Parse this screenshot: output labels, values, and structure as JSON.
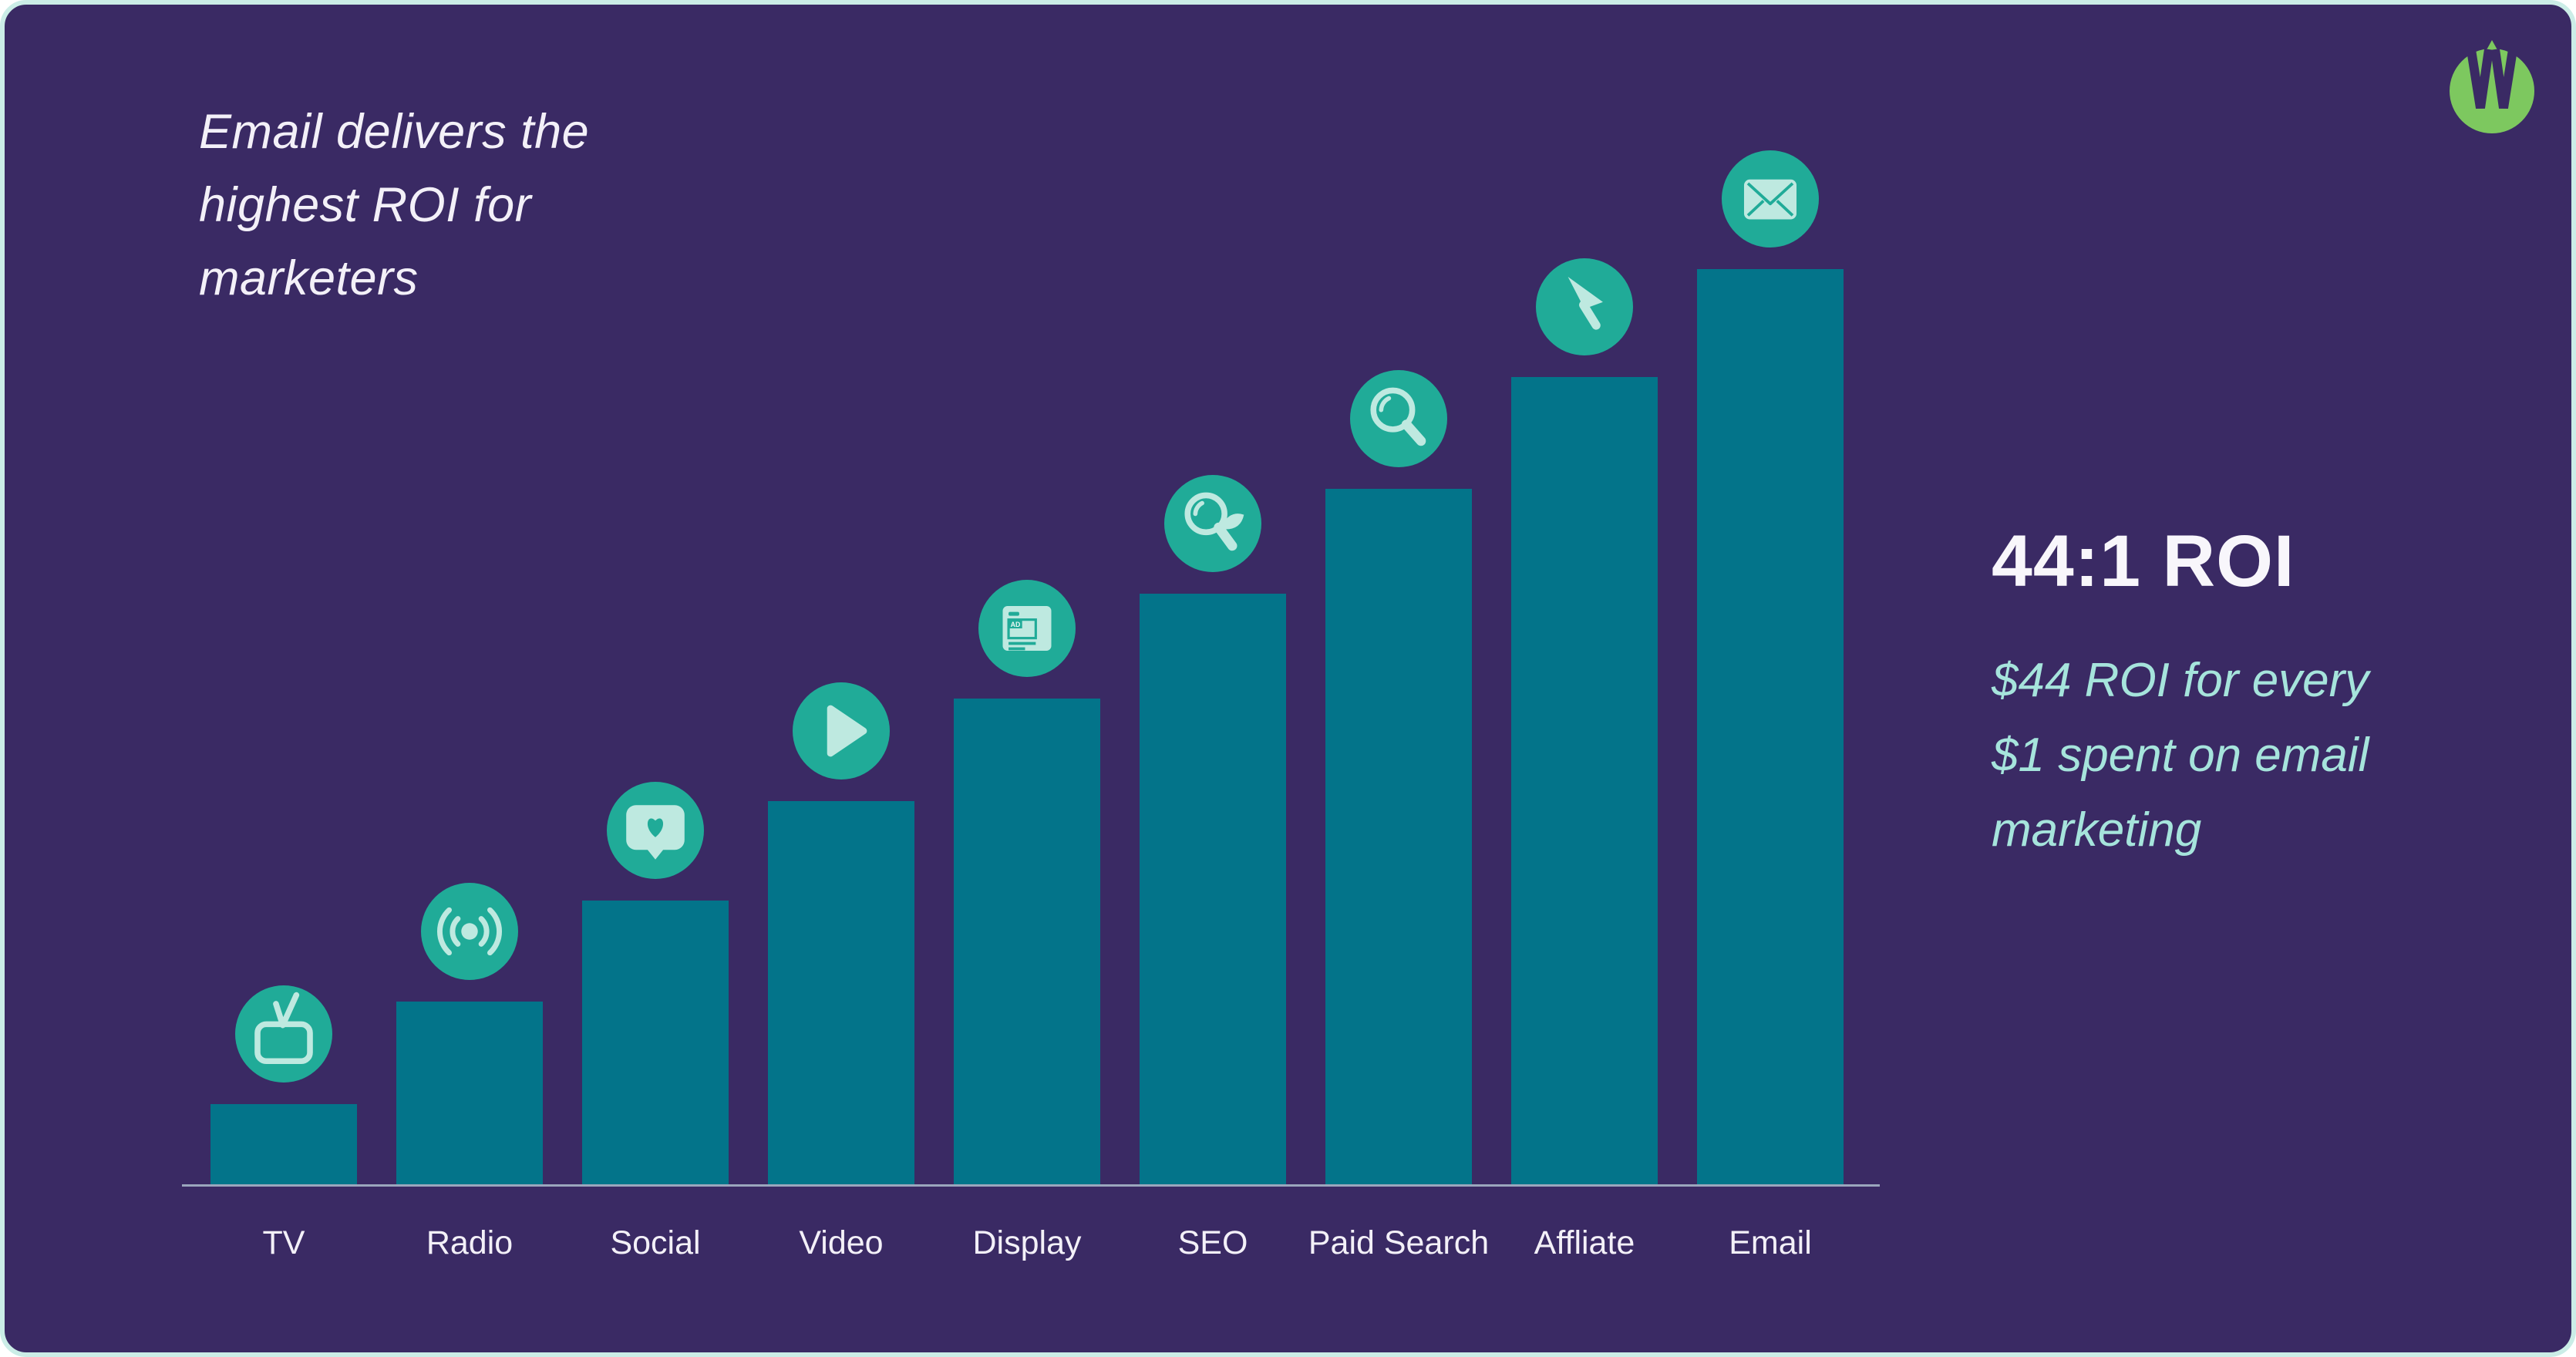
{
  "card": {
    "background": "#3A2A64",
    "border_color": "#CBEDE7"
  },
  "headline": {
    "text": "Email delivers the\nhighest ROI for\nmarketers",
    "color": "#F3F0F8"
  },
  "logo": {
    "name": "w-brand-logo",
    "circle_color": "#7DC85F",
    "cut_color": "#3A2A64"
  },
  "stat": {
    "value": "44:1 ROI",
    "description": "$44 ROI for every\n$1 spent on email\nmarketing",
    "value_color": "#F8F6FB",
    "description_color": "#A6E4DC"
  },
  "chart_data": {
    "type": "bar",
    "title": "Email delivers the highest ROI for marketers",
    "xlabel": "",
    "ylabel": "",
    "grid": false,
    "legend": false,
    "categories": [
      "TV",
      "Radio",
      "Social",
      "Video",
      "Display",
      "SEO",
      "Paid Search",
      "Affliate",
      "Email"
    ],
    "icons": [
      "tv-icon",
      "broadcast-icon",
      "chat-heart-icon",
      "play-icon",
      "ad-page-icon",
      "magnifier-leaf-icon",
      "magnifier-icon",
      "cursor-icon",
      "envelope-icon"
    ],
    "relative_height_pct": [
      8.8,
      20.0,
      31.1,
      41.9,
      53.1,
      64.6,
      76.0,
      88.2,
      100
    ],
    "estimated_roi_ratio": [
      4,
      9,
      14,
      18,
      23,
      28,
      33,
      39,
      44
    ],
    "highlight": {
      "category": "Email",
      "roi": "44:1"
    },
    "bar_color": "#03748A",
    "icon_circle_color": "#20AB98",
    "icon_glyph_color": "#BEE9E0",
    "axis_line_color": "#9BA6BD",
    "label_color": "#F3F0F8"
  }
}
